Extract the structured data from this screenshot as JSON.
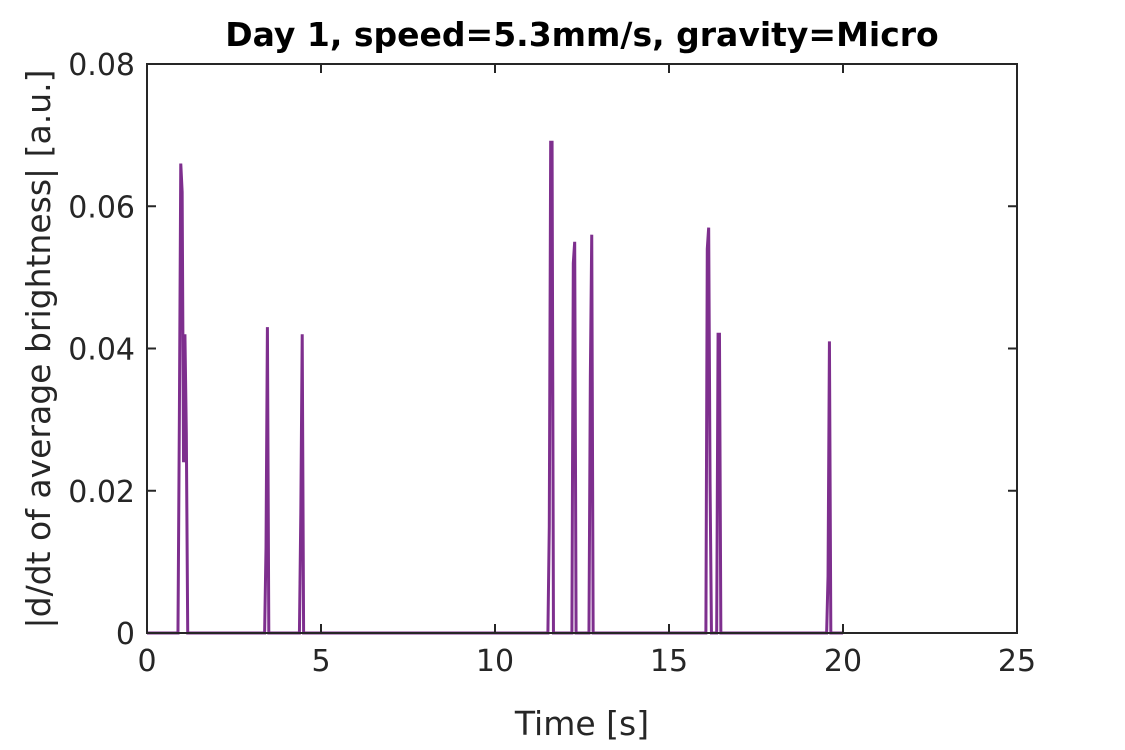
{
  "chart_data": {
    "type": "line",
    "title": "Day 1, speed=5.3mm/s, gravity=Micro",
    "xlabel": "Time [s]",
    "ylabel": "|d/dt of average brightness| [a.u.]",
    "xlim": [
      0,
      25
    ],
    "ylim": [
      0,
      0.08
    ],
    "xticks": [
      0,
      5,
      10,
      15,
      20,
      25
    ],
    "xtick_labels": [
      "0",
      "5",
      "10",
      "15",
      "20",
      "25"
    ],
    "yticks": [
      0,
      0.02,
      0.04,
      0.06,
      0.08
    ],
    "ytick_labels": [
      "0",
      "0.02",
      "0.04",
      "0.06",
      "0.08"
    ],
    "grid": false,
    "box": true,
    "series": [
      {
        "color": "#7E2F8E",
        "x": [
          0,
          0.89,
          0.93,
          0.97,
          1.01,
          1.05,
          1.09,
          1.13,
          1.17,
          1.21,
          3.38,
          3.42,
          3.46,
          3.5,
          4.38,
          4.42,
          4.46,
          4.5,
          11.52,
          11.56,
          11.6,
          11.64,
          11.68,
          12.21,
          12.25,
          12.29,
          12.33,
          12.7,
          12.74,
          12.78,
          12.82,
          16.06,
          16.1,
          16.14,
          16.18,
          16.22,
          16.37,
          16.41,
          16.45,
          16.49,
          19.53,
          19.57,
          19.61,
          19.65,
          20.0
        ],
        "y": [
          0,
          0,
          0.03,
          0.066,
          0.062,
          0.024,
          0.042,
          0.028,
          0,
          0,
          0,
          0.012,
          0.043,
          0,
          0,
          0.017,
          0.042,
          0,
          0,
          0.015,
          0.069,
          0.069,
          0,
          0,
          0.052,
          0.055,
          0,
          0,
          0.036,
          0.056,
          0,
          0,
          0.054,
          0.057,
          0.021,
          0,
          0,
          0.042,
          0.042,
          0,
          0,
          0.008,
          0.041,
          0,
          0
        ]
      }
    ]
  }
}
